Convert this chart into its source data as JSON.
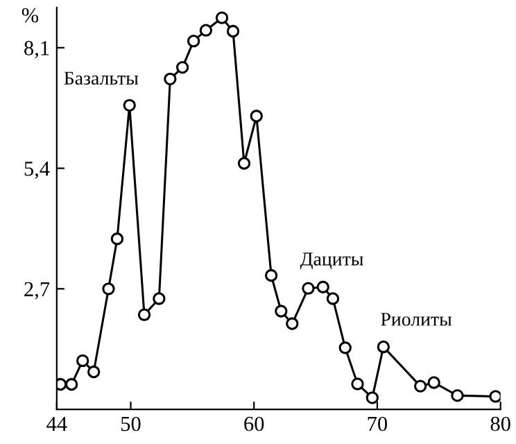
{
  "chart_data": {
    "type": "line",
    "ylabel": "%",
    "x": [
      44.3,
      45.2,
      46.1,
      47.0,
      48.2,
      48.9,
      49.9,
      51.1,
      52.3,
      53.2,
      54.2,
      55.1,
      56.1,
      57.4,
      58.3,
      59.2,
      60.2,
      61.4,
      62.2,
      63.1,
      64.4,
      65.6,
      66.4,
      67.4,
      68.4,
      69.6,
      70.5,
      73.5,
      74.6,
      76.5,
      79.6
    ],
    "series": [
      {
        "color": "#000000",
        "values": [
          0.56,
          0.56,
          1.09,
          0.84,
          2.7,
          3.82,
          6.81,
          2.12,
          2.48,
          7.4,
          7.66,
          8.25,
          8.49,
          8.77,
          8.47,
          5.51,
          6.57,
          3.0,
          2.2,
          1.92,
          2.71,
          2.74,
          2.48,
          1.38,
          0.57,
          0.26,
          1.4,
          0.52,
          0.6,
          0.31,
          0.29
        ]
      }
    ],
    "xlim": [
      44,
      80
    ],
    "ylim": [
      0,
      9
    ],
    "xticks": [
      44,
      50,
      60,
      70,
      80
    ],
    "yticks": [
      {
        "value": 2.7,
        "label": "2,7"
      },
      {
        "value": 5.4,
        "label": "5,4"
      },
      {
        "value": 8.1,
        "label": "8,1"
      }
    ],
    "annotations": [
      "Базальты",
      "Дациты",
      "Риолиты"
    ],
    "marker": "circle",
    "line_style": "solid",
    "grid": false,
    "legend": false
  }
}
